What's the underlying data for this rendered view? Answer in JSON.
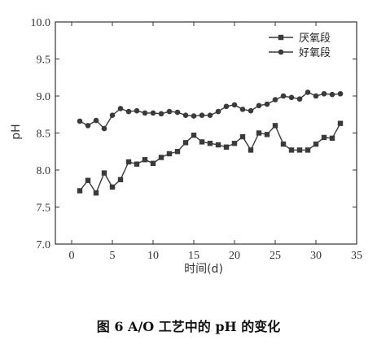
{
  "chart_data": {
    "type": "line",
    "xlabel": "时间(d)",
    "ylabel": "pH",
    "xlim": [
      -2,
      35
    ],
    "ylim": [
      7.0,
      10.0
    ],
    "xticks": [
      "0",
      "5",
      "10",
      "15",
      "20",
      "25",
      "30",
      "35"
    ],
    "yticks": [
      "7.0",
      "7.5",
      "8.0",
      "8.5",
      "9.0",
      "9.5",
      "10.0"
    ],
    "legend_position": "top-right",
    "series": [
      {
        "name": "厌氧段",
        "marker": "square",
        "x": [
          1,
          2,
          3,
          4,
          5,
          6,
          7,
          8,
          9,
          10,
          11,
          12,
          13,
          14,
          15,
          16,
          17,
          18,
          19,
          20,
          21,
          22,
          23,
          24,
          25,
          26,
          27,
          28,
          29,
          30,
          31,
          32,
          33
        ],
        "y": [
          7.72,
          7.86,
          7.69,
          7.96,
          7.77,
          7.87,
          8.11,
          8.08,
          8.14,
          8.09,
          8.17,
          8.22,
          8.25,
          8.37,
          8.47,
          8.38,
          8.36,
          8.34,
          8.31,
          8.36,
          8.45,
          8.27,
          8.5,
          8.48,
          8.6,
          8.35,
          8.27,
          8.27,
          8.27,
          8.35,
          8.44,
          8.43,
          8.63
        ]
      },
      {
        "name": "好氧段",
        "marker": "circle",
        "x": [
          1,
          2,
          3,
          4,
          5,
          6,
          7,
          8,
          9,
          10,
          11,
          12,
          13,
          14,
          15,
          16,
          17,
          18,
          19,
          20,
          21,
          22,
          23,
          24,
          25,
          26,
          27,
          28,
          29,
          30,
          31,
          32,
          33
        ],
        "y": [
          8.66,
          8.6,
          8.67,
          8.56,
          8.74,
          8.83,
          8.79,
          8.8,
          8.77,
          8.77,
          8.76,
          8.79,
          8.78,
          8.74,
          8.73,
          8.74,
          8.74,
          8.79,
          8.86,
          8.88,
          8.82,
          8.8,
          8.87,
          8.89,
          8.95,
          9.0,
          8.98,
          8.96,
          9.05,
          9.0,
          9.03,
          9.02,
          9.03
        ]
      }
    ]
  },
  "caption": "图 6    A/O 工艺中的 pH 的变化",
  "colors": {
    "line": "#3a3a3a",
    "axis": "#333333"
  }
}
